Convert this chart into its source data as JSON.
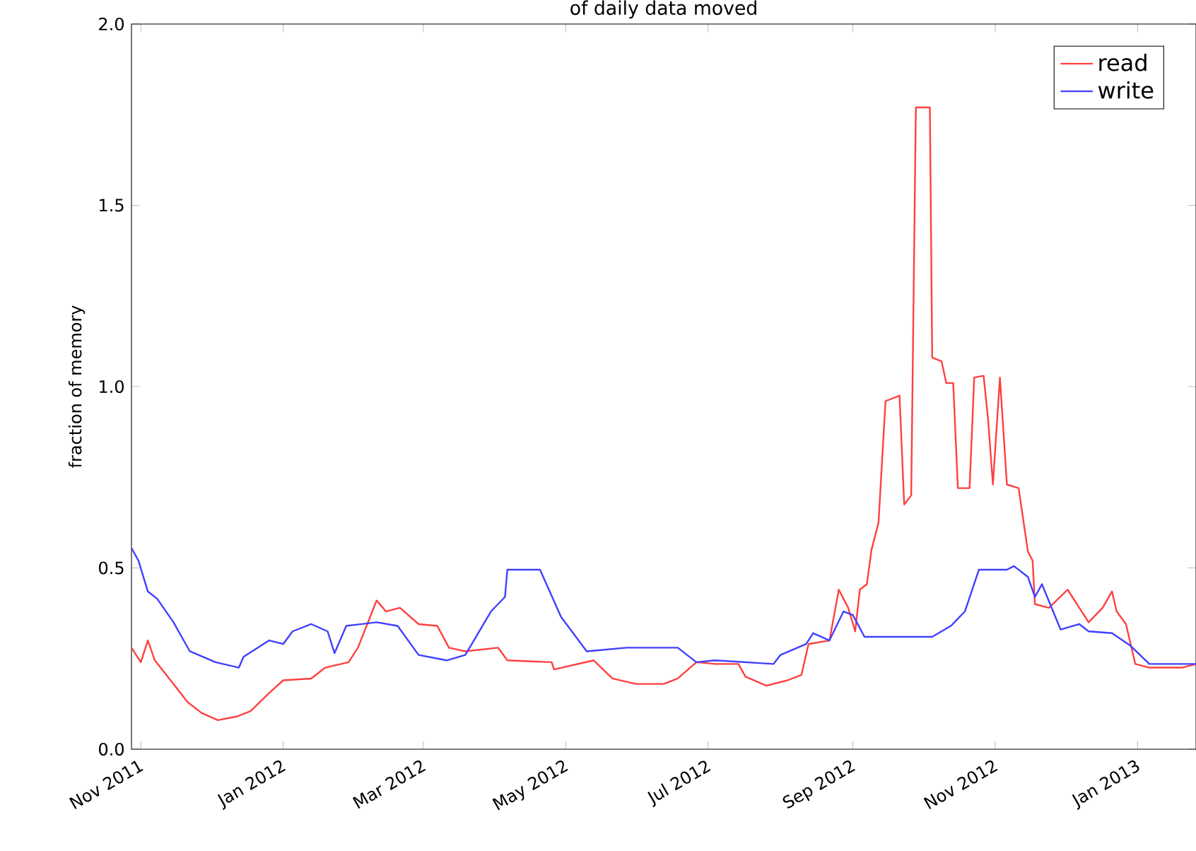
{
  "chart_data": {
    "type": "line",
    "title": "of daily data moved",
    "ylabel": "fraction of memory",
    "xlim": [
      "2011-10-28",
      "2013-01-26"
    ],
    "ylim": [
      0,
      2
    ],
    "xticks": [
      {
        "value": "2011-11-01",
        "label": "Nov 2011"
      },
      {
        "value": "2012-01-01",
        "label": "Jan 2012"
      },
      {
        "value": "2012-03-01",
        "label": "Mar 2012"
      },
      {
        "value": "2012-05-01",
        "label": "May 2012"
      },
      {
        "value": "2012-07-01",
        "label": "Jul 2012"
      },
      {
        "value": "2012-09-01",
        "label": "Sep 2012"
      },
      {
        "value": "2012-11-01",
        "label": "Nov 2012"
      },
      {
        "value": "2013-01-01",
        "label": "Jan 2013"
      }
    ],
    "yticks": [
      {
        "value": 0,
        "label": "0.0"
      },
      {
        "value": 0.5,
        "label": "0.5"
      },
      {
        "value": 1,
        "label": "1.0"
      },
      {
        "value": 1.5,
        "label": "1.5"
      },
      {
        "value": 2,
        "label": "2.0"
      }
    ],
    "grid": false,
    "legend": "top right",
    "marker": "none",
    "line_style": "solid",
    "series": [
      {
        "name": "read",
        "color": "#ff4040",
        "x": [
          "2011-10-28",
          "2011-11-01",
          "2011-11-04",
          "2011-11-07",
          "2011-11-15",
          "2011-11-21",
          "2011-11-27",
          "2011-12-04",
          "2011-12-12",
          "2011-12-18",
          "2011-12-26",
          "2012-01-01",
          "2012-01-13",
          "2012-01-19",
          "2012-01-29",
          "2012-02-02",
          "2012-02-06",
          "2012-02-10",
          "2012-02-14",
          "2012-02-20",
          "2012-02-28",
          "2012-03-07",
          "2012-03-12",
          "2012-03-19",
          "2012-04-02",
          "2012-04-06",
          "2012-04-25",
          "2012-04-26",
          "2012-05-13",
          "2012-05-21",
          "2012-05-31",
          "2012-06-12",
          "2012-06-18",
          "2012-06-26",
          "2012-07-04",
          "2012-07-14",
          "2012-07-17",
          "2012-07-26",
          "2012-08-04",
          "2012-08-10",
          "2012-08-13",
          "2012-08-22",
          "2012-08-26",
          "2012-08-30",
          "2012-09-02",
          "2012-09-04",
          "2012-09-07",
          "2012-09-09",
          "2012-09-12",
          "2012-09-15",
          "2012-09-21",
          "2012-09-23",
          "2012-09-26",
          "2012-09-28",
          "2012-10-04",
          "2012-10-05",
          "2012-10-09",
          "2012-10-11",
          "2012-10-14",
          "2012-10-16",
          "2012-10-21",
          "2012-10-23",
          "2012-10-27",
          "2012-10-29",
          "2012-10-31",
          "2012-11-03",
          "2012-11-06",
          "2012-11-11",
          "2012-11-15",
          "2012-11-17",
          "2012-11-18",
          "2012-11-24",
          "2012-12-02",
          "2012-12-11",
          "2012-12-17",
          "2012-12-21",
          "2012-12-23",
          "2012-12-27",
          "2012-12-31",
          "2013-01-06",
          "2013-01-20",
          "2013-01-26"
        ],
        "values": [
          0.28,
          0.24,
          0.3,
          0.245,
          0.18,
          0.13,
          0.1,
          0.08,
          0.09,
          0.105,
          0.155,
          0.19,
          0.195,
          0.225,
          0.24,
          0.28,
          0.345,
          0.41,
          0.38,
          0.39,
          0.345,
          0.34,
          0.28,
          0.27,
          0.28,
          0.245,
          0.24,
          0.22,
          0.245,
          0.195,
          0.18,
          0.18,
          0.195,
          0.24,
          0.235,
          0.235,
          0.2,
          0.175,
          0.19,
          0.205,
          0.29,
          0.3,
          0.44,
          0.39,
          0.325,
          0.44,
          0.455,
          0.55,
          0.625,
          0.96,
          0.975,
          0.675,
          0.7,
          1.77,
          1.77,
          1.08,
          1.07,
          1.01,
          1.01,
          0.72,
          0.72,
          1.025,
          1.03,
          0.905,
          0.73,
          1.025,
          0.73,
          0.72,
          0.545,
          0.52,
          0.4,
          0.39,
          0.44,
          0.35,
          0.39,
          0.435,
          0.38,
          0.345,
          0.235,
          0.225,
          0.225,
          0.235
        ]
      },
      {
        "name": "write",
        "color": "#4040ff",
        "x": [
          "2011-10-28",
          "2011-10-31",
          "2011-11-04",
          "2011-11-08",
          "2011-11-15",
          "2011-11-22",
          "2011-12-03",
          "2011-12-13",
          "2011-12-15",
          "2011-12-26",
          "2012-01-01",
          "2012-01-05",
          "2012-01-13",
          "2012-01-20",
          "2012-01-23",
          "2012-01-28",
          "2012-02-10",
          "2012-02-19",
          "2012-02-28",
          "2012-03-11",
          "2012-03-19",
          "2012-03-30",
          "2012-04-05",
          "2012-04-06",
          "2012-04-20",
          "2012-04-29",
          "2012-05-10",
          "2012-05-27",
          "2012-06-12",
          "2012-06-18",
          "2012-06-26",
          "2012-07-04",
          "2012-07-29",
          "2012-08-01",
          "2012-08-12",
          "2012-08-15",
          "2012-08-22",
          "2012-08-28",
          "2012-09-01",
          "2012-09-06",
          "2012-10-05",
          "2012-10-13",
          "2012-10-19",
          "2012-10-25",
          "2012-11-06",
          "2012-11-09",
          "2012-11-15",
          "2012-11-18",
          "2012-11-21",
          "2012-11-29",
          "2012-12-07",
          "2012-12-11",
          "2012-12-21",
          "2012-12-29",
          "2013-01-06",
          "2013-01-26"
        ],
        "values": [
          0.555,
          0.52,
          0.435,
          0.415,
          0.35,
          0.27,
          0.24,
          0.225,
          0.255,
          0.3,
          0.29,
          0.325,
          0.345,
          0.325,
          0.265,
          0.34,
          0.35,
          0.34,
          0.26,
          0.245,
          0.26,
          0.38,
          0.42,
          0.495,
          0.495,
          0.365,
          0.27,
          0.28,
          0.28,
          0.28,
          0.24,
          0.245,
          0.235,
          0.26,
          0.29,
          0.32,
          0.3,
          0.38,
          0.37,
          0.31,
          0.31,
          0.34,
          0.38,
          0.495,
          0.495,
          0.505,
          0.475,
          0.42,
          0.455,
          0.33,
          0.345,
          0.325,
          0.32,
          0.285,
          0.235,
          0.235
        ]
      }
    ]
  }
}
